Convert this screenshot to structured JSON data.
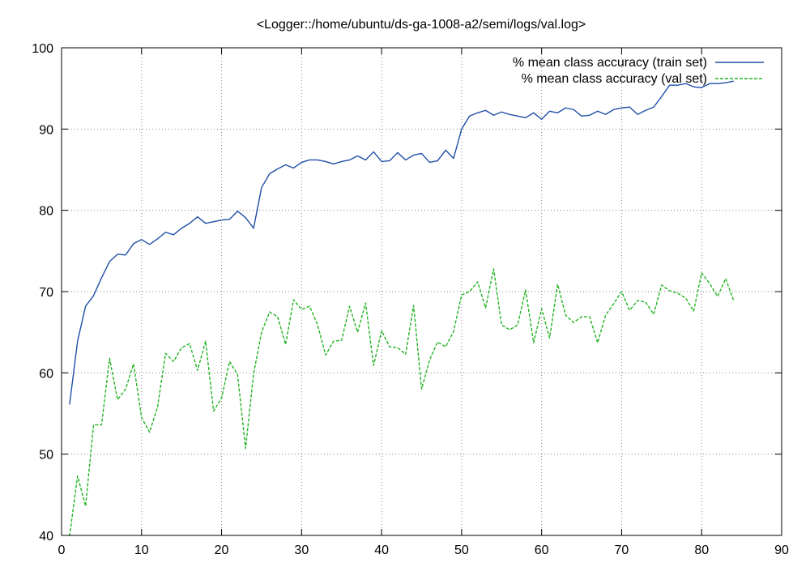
{
  "chart_data": {
    "type": "line",
    "title": "<Logger::/home/ubuntu/ds-ga-1008-a2/semi/logs/val.log>",
    "xlabel": "",
    "ylabel": "",
    "xlim": [
      0,
      90
    ],
    "ylim": [
      40,
      100
    ],
    "xticks": [
      "0",
      "10",
      "20",
      "30",
      "40",
      "50",
      "60",
      "70",
      "80",
      "90"
    ],
    "yticks": [
      "40",
      "50",
      "60",
      "70",
      "80",
      "90",
      "100"
    ],
    "grid": true,
    "legend_position": "top-right",
    "x": [
      1,
      2,
      3,
      4,
      5,
      6,
      7,
      8,
      9,
      10,
      11,
      12,
      13,
      14,
      15,
      16,
      17,
      18,
      19,
      20,
      21,
      22,
      23,
      24,
      25,
      26,
      27,
      28,
      29,
      30,
      31,
      32,
      33,
      34,
      35,
      36,
      37,
      38,
      39,
      40,
      41,
      42,
      43,
      44,
      45,
      46,
      47,
      48,
      49,
      50,
      51,
      52,
      53,
      54,
      55,
      56,
      57,
      58,
      59,
      60,
      61,
      62,
      63,
      64,
      65,
      66,
      67,
      68,
      69,
      70,
      71,
      72,
      73,
      74,
      75,
      76,
      77,
      78,
      79,
      80,
      81,
      82,
      83,
      84
    ],
    "series": [
      {
        "name": "% mean class accuracy (train set)",
        "color": "#1f4fa8",
        "style": "solid",
        "values": [
          56.1,
          63.9,
          68.2,
          69.5,
          71.7,
          73.7,
          74.6,
          74.5,
          75.9,
          76.4,
          75.8,
          76.5,
          77.3,
          77.0,
          77.8,
          78.4,
          79.2,
          78.4,
          78.6,
          78.8,
          78.9,
          79.9,
          79.1,
          77.8,
          82.8,
          84.5,
          85.1,
          85.6,
          85.2,
          85.9,
          86.2,
          86.2,
          86.0,
          85.7,
          86.0,
          86.2,
          86.7,
          86.2,
          87.2,
          86.0,
          86.1,
          87.1,
          86.2,
          86.8,
          87.0,
          85.9,
          86.1,
          87.4,
          86.4,
          90.0,
          91.6,
          92.0,
          92.3,
          91.7,
          92.1,
          91.8,
          91.6,
          91.4,
          92.0,
          91.2,
          92.2,
          92.0,
          92.6,
          92.4,
          91.6,
          91.7,
          92.2,
          91.8,
          92.4,
          92.6,
          92.7,
          91.8,
          92.3,
          92.7,
          94.0,
          95.4,
          95.4,
          95.6,
          95.2,
          95.1,
          95.6,
          95.6,
          95.7,
          95.9
        ]
      },
      {
        "name": "% mean class accuracy (val set)",
        "color": "#22b222",
        "style": "dashed",
        "values": [
          39.9,
          47.3,
          43.6,
          53.6,
          53.6,
          61.8,
          56.7,
          58.0,
          61.1,
          54.5,
          52.7,
          55.8,
          62.4,
          61.4,
          63.1,
          63.6,
          60.3,
          63.9,
          55.3,
          56.9,
          61.4,
          59.8,
          50.7,
          59.9,
          65.0,
          67.5,
          66.9,
          63.5,
          69.0,
          67.8,
          68.2,
          65.9,
          62.2,
          63.9,
          64.0,
          68.2,
          65.0,
          68.6,
          60.9,
          65.2,
          63.2,
          63.1,
          62.3,
          68.3,
          58.0,
          61.6,
          63.8,
          63.2,
          65.1,
          69.6,
          70.0,
          71.2,
          68.0,
          72.8,
          65.9,
          65.3,
          65.9,
          70.2,
          63.7,
          67.9,
          64.3,
          70.9,
          67.1,
          66.2,
          66.9,
          66.9,
          63.7,
          67.1,
          68.5,
          70.0,
          67.7,
          68.9,
          68.7,
          67.2,
          70.8,
          70.1,
          69.8,
          69.2,
          67.6,
          72.3,
          71.0,
          69.4,
          71.6,
          68.9
        ]
      }
    ]
  }
}
